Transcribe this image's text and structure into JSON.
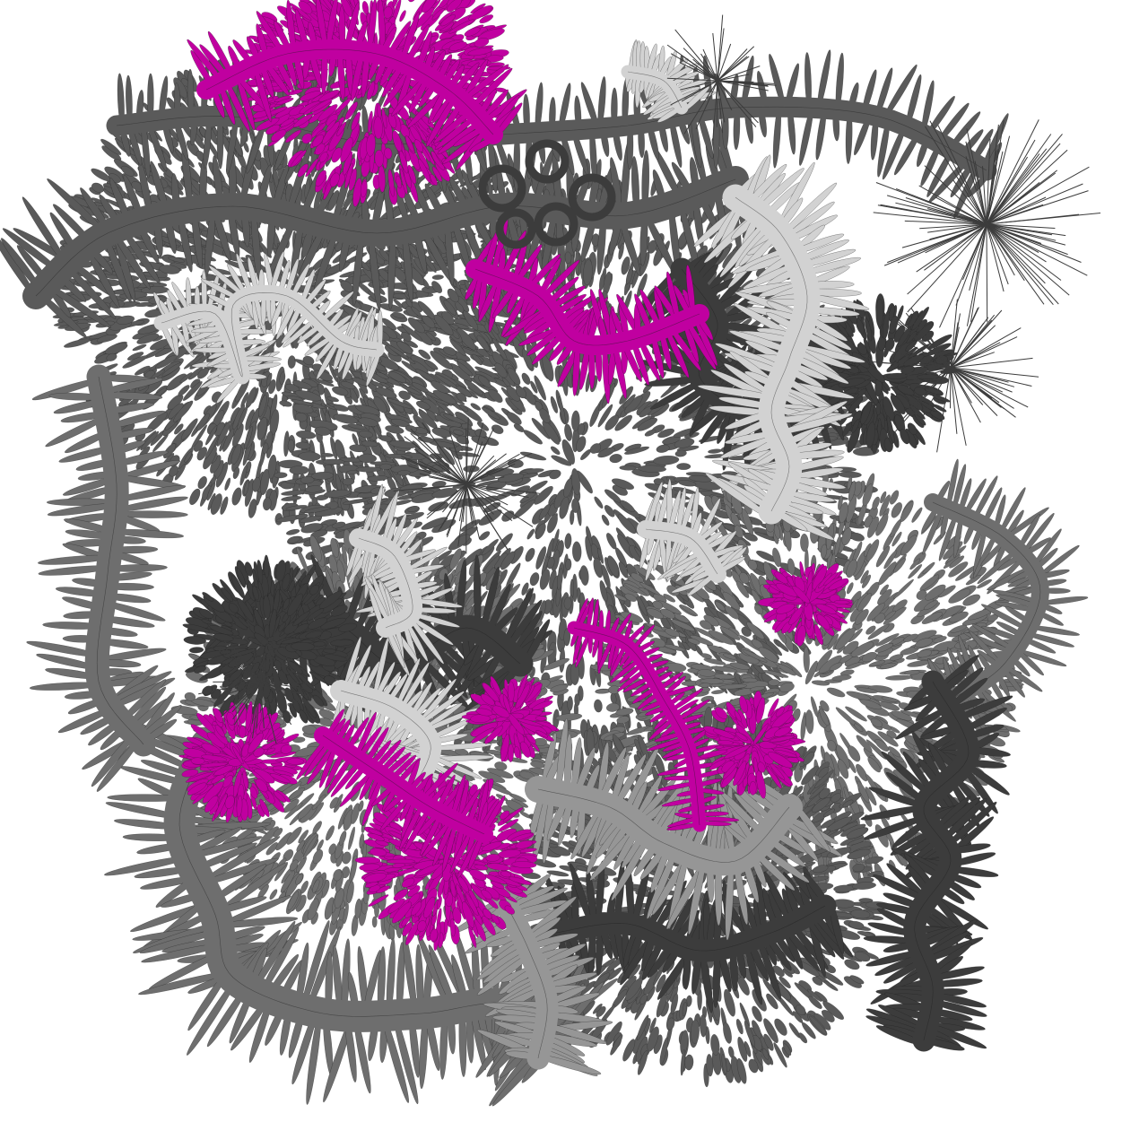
{
  "artwork": {
    "background": "#ffffff",
    "palette": {
      "dark": "#3c3c3c",
      "mid": "#5a5a5a",
      "mid_light": "#6e6e6e",
      "light": "#969696",
      "pale": "#d2d2d2",
      "accent": "#c000a0",
      "outline": "#1e1e1e"
    }
  }
}
